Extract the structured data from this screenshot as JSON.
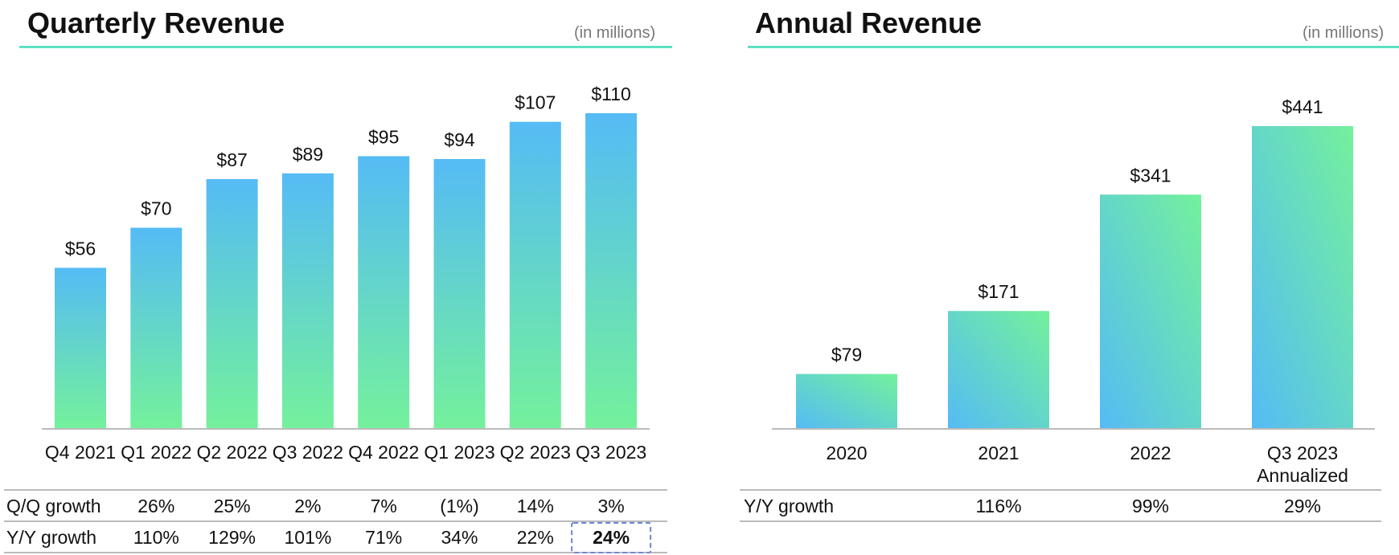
{
  "colors": {
    "bar_top": "#55bbf5",
    "bar_bottom": "#74f19c",
    "title_rule": "#5ee0c4",
    "axis": "#bbbbbb",
    "highlight_box": "#6f86d6"
  },
  "left": {
    "title": "Quarterly Revenue",
    "units": "(in millions)"
  },
  "right": {
    "title": "Annual Revenue",
    "units": "(in millions)"
  },
  "chart_data": [
    {
      "type": "bar",
      "title": "Quarterly Revenue",
      "subtitle": "(in millions)",
      "categories": [
        "Q4 2021",
        "Q1 2022",
        "Q2 2022",
        "Q3 2022",
        "Q4 2022",
        "Q1 2023",
        "Q2 2023",
        "Q3 2023"
      ],
      "values": [
        56,
        70,
        87,
        89,
        95,
        94,
        107,
        110
      ],
      "value_labels": [
        "$56",
        "$70",
        "$87",
        "$89",
        "$95",
        "$94",
        "$107",
        "$110"
      ],
      "ylim": [
        0,
        110
      ],
      "grid": false,
      "table": {
        "rows": [
          {
            "label": "Q/Q growth",
            "values": [
              "26%",
              "25%",
              "2%",
              "7%",
              "(1%)",
              "14%",
              "3%"
            ]
          },
          {
            "label": "Y/Y growth",
            "values": [
              "110%",
              "129%",
              "101%",
              "71%",
              "34%",
              "22%",
              "24%"
            ]
          }
        ],
        "highlight": "24%"
      }
    },
    {
      "type": "bar",
      "title": "Annual Revenue",
      "subtitle": "(in millions)",
      "categories": [
        "2020",
        "2021",
        "2022",
        "Q3 2023 Annualized"
      ],
      "category_lines": [
        [
          "2020"
        ],
        [
          "2021"
        ],
        [
          "2022"
        ],
        [
          "Q3 2023",
          "Annualized"
        ]
      ],
      "values": [
        79,
        171,
        341,
        441
      ],
      "value_labels": [
        "$79",
        "$171",
        "$341",
        "$441"
      ],
      "ylim": [
        0,
        441
      ],
      "grid": false,
      "table": {
        "rows": [
          {
            "label": "Y/Y growth",
            "values": [
              "116%",
              "99%",
              "29%"
            ]
          }
        ]
      }
    }
  ]
}
